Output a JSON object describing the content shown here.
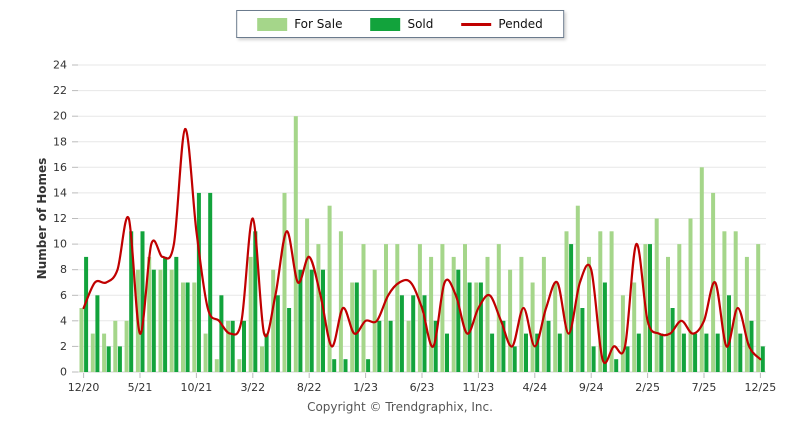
{
  "legend": {
    "items": [
      {
        "label": "For Sale",
        "color": "#a5d68a",
        "swatch": "box"
      },
      {
        "label": "Sold",
        "color": "#12a33c",
        "swatch": "box"
      },
      {
        "label": "Pended",
        "color": "#c00000",
        "swatch": "line"
      }
    ]
  },
  "y_axis": {
    "title": "Number of Homes",
    "ticks": [
      0,
      2,
      4,
      6,
      8,
      10,
      12,
      14,
      16,
      18,
      20,
      22,
      24
    ]
  },
  "x_axis": {
    "tick_labels": [
      "12/20",
      "5/21",
      "10/21",
      "3/22",
      "8/22",
      "1/23",
      "6/23",
      "11/23",
      "4/24",
      "9/24",
      "2/25",
      "7/25",
      "12/25"
    ],
    "tick_interval": 5
  },
  "footer": {
    "copyright": "Copyright © Trendgraphix, Inc."
  },
  "colors": {
    "for_sale": "#a5d68a",
    "sold": "#12a33c",
    "pended": "#c00000",
    "gridline": "#e7e7e7",
    "baseline": "#d4d4d4",
    "tick_text": "#333333",
    "axis_title": "#333333"
  },
  "chart_data": {
    "type": "bar",
    "title": "",
    "xlabel": "",
    "ylabel": "Number of Homes",
    "ylim": [
      0,
      24
    ],
    "grid": true,
    "legend_position": "top",
    "categories": [
      "12/20",
      "1/21",
      "2/21",
      "3/21",
      "4/21",
      "5/21",
      "6/21",
      "7/21",
      "8/21",
      "9/21",
      "10/21",
      "11/21",
      "12/21",
      "1/22",
      "2/22",
      "3/22",
      "4/22",
      "5/22",
      "6/22",
      "7/22",
      "8/22",
      "9/22",
      "10/22",
      "11/22",
      "12/22",
      "1/23",
      "2/23",
      "3/23",
      "4/23",
      "5/23",
      "6/23",
      "7/23",
      "8/23",
      "9/23",
      "10/23",
      "11/23",
      "12/23",
      "1/24",
      "2/24",
      "3/24",
      "4/24",
      "5/24",
      "6/24",
      "7/24",
      "8/24",
      "9/24",
      "10/24",
      "11/24",
      "12/24",
      "1/25",
      "2/25",
      "3/25",
      "4/25",
      "5/25",
      "6/25",
      "7/25",
      "8/25",
      "9/25",
      "10/25",
      "11/25",
      "12/25"
    ],
    "series": [
      {
        "name": "For Sale",
        "type": "bar",
        "color": "#a5d68a",
        "values": [
          5,
          3,
          3,
          4,
          4,
          8,
          9,
          8,
          8,
          7,
          7,
          3,
          1,
          4,
          1,
          9,
          2,
          8,
          14,
          20,
          12,
          10,
          13,
          11,
          7,
          10,
          8,
          10,
          10,
          4,
          10,
          9,
          10,
          9,
          10,
          7,
          9,
          10,
          8,
          9,
          7,
          9,
          7,
          11,
          13,
          9,
          11,
          11,
          6,
          7,
          10,
          12,
          9,
          10,
          12,
          16,
          14,
          11,
          11,
          9,
          10
        ]
      },
      {
        "name": "Sold",
        "type": "bar",
        "color": "#12a33c",
        "values": [
          9,
          6,
          2,
          2,
          11,
          11,
          8,
          9,
          9,
          7,
          14,
          14,
          6,
          4,
          4,
          11,
          3,
          6,
          5,
          8,
          8,
          8,
          1,
          1,
          7,
          1,
          4,
          4,
          6,
          6,
          6,
          4,
          3,
          8,
          7,
          7,
          3,
          4,
          2,
          3,
          3,
          4,
          3,
          10,
          5,
          2,
          7,
          1,
          2,
          3,
          10,
          3,
          5,
          3,
          3,
          3,
          3,
          6,
          3,
          4,
          2
        ]
      },
      {
        "name": "Pended",
        "type": "line",
        "color": "#c00000",
        "values": [
          5,
          7,
          7,
          8,
          12,
          3,
          10,
          9,
          10,
          19,
          11,
          5,
          4,
          3,
          4,
          12,
          3,
          6,
          11,
          7,
          9,
          6,
          2,
          5,
          3,
          4,
          4,
          6,
          7,
          7,
          5,
          2,
          7,
          6,
          3,
          5,
          6,
          4,
          2,
          5,
          2,
          5,
          7,
          3,
          7,
          8,
          1,
          2,
          2,
          10,
          4,
          3,
          3,
          4,
          3,
          4,
          7,
          2,
          5,
          2,
          1
        ]
      }
    ]
  }
}
